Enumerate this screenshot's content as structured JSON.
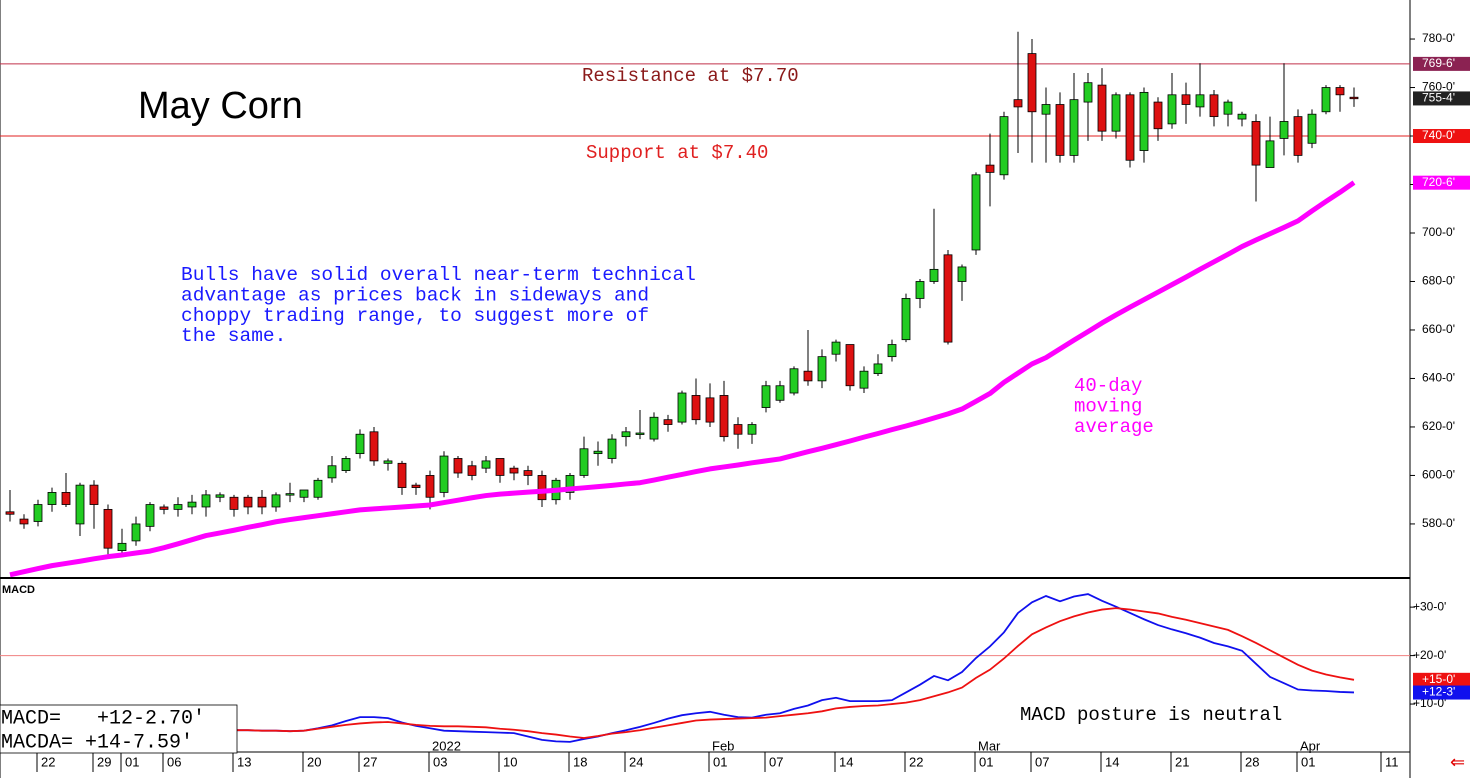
{
  "chart_data": {
    "type": "candlestick",
    "title": "May Corn",
    "categories": [
      null,
      null,
      "22",
      null,
      null,
      null,
      "29",
      null,
      "01",
      null,
      null,
      "06",
      null,
      null,
      null,
      null,
      "13",
      null,
      null,
      null,
      null,
      "20",
      null,
      null,
      null,
      "27",
      null,
      null,
      null,
      null,
      "03",
      null,
      null,
      null,
      null,
      "10",
      null,
      null,
      null,
      null,
      "18",
      null,
      null,
      null,
      "24",
      null,
      null,
      null,
      null,
      null,
      "01",
      null,
      null,
      null,
      "07",
      null,
      null,
      null,
      null,
      "14",
      null,
      null,
      null,
      null,
      "22",
      null,
      null,
      null,
      null,
      "01",
      null,
      null,
      null,
      "07",
      null,
      null,
      null,
      null,
      "14",
      null,
      null,
      null,
      null,
      "21",
      null,
      null,
      null,
      null,
      "28",
      null,
      null,
      null,
      "01",
      null,
      null,
      null,
      null,
      null,
      "11"
    ],
    "month_categories": [
      null,
      null,
      null,
      null,
      null,
      null,
      null,
      null,
      null,
      null,
      null,
      null,
      null,
      null,
      null,
      null,
      null,
      null,
      null,
      null,
      null,
      null,
      null,
      null,
      null,
      null,
      null,
      null,
      null,
      null,
      "2022",
      null,
      null,
      null,
      null,
      null,
      null,
      null,
      null,
      null,
      null,
      null,
      null,
      null,
      null,
      null,
      null,
      null,
      null,
      null,
      "Feb",
      null,
      null,
      null,
      null,
      null,
      null,
      null,
      null,
      null,
      null,
      null,
      null,
      null,
      null,
      null,
      null,
      null,
      null,
      "Mar",
      null,
      null,
      null,
      null,
      null,
      null,
      null,
      null,
      null,
      null,
      null,
      null,
      null,
      null,
      null,
      null,
      null,
      null,
      null,
      null,
      null,
      null,
      "Apr",
      null,
      null,
      null,
      null,
      null,
      null
    ],
    "open": [
      585,
      582,
      581,
      588,
      593,
      580,
      596,
      586,
      569,
      573,
      579,
      587,
      586,
      587,
      587,
      591,
      591,
      591,
      591,
      587,
      592,
      591,
      591,
      599,
      602,
      609,
      618,
      605,
      605,
      596,
      600,
      593,
      607,
      604,
      603,
      607,
      603,
      602,
      600,
      590,
      593,
      600,
      609,
      607,
      616,
      617,
      615,
      623,
      622,
      633,
      632,
      633,
      621,
      617,
      628,
      631,
      634,
      643,
      639,
      650,
      654,
      636,
      642,
      649,
      656,
      673,
      680,
      691,
      680,
      693,
      728,
      724,
      755,
      774,
      749,
      753,
      732,
      754,
      761,
      742,
      757,
      734,
      754,
      745,
      757,
      752,
      757,
      749,
      747,
      746,
      727,
      739,
      748,
      737,
      750,
      760,
      756,
      null,
      null
    ],
    "high": [
      594,
      584,
      590,
      595,
      601,
      597,
      598,
      588,
      578,
      583,
      589,
      588,
      591,
      592,
      594,
      593,
      592,
      592,
      594,
      593,
      597,
      594,
      599,
      608,
      608,
      619,
      620,
      607,
      606,
      597,
      602,
      610,
      608,
      606,
      608,
      607,
      604,
      604,
      602,
      599,
      601,
      616,
      614,
      617,
      620,
      627,
      626,
      625,
      635,
      640,
      638,
      639,
      624,
      622,
      639,
      639,
      645,
      660,
      652,
      656,
      654,
      645,
      650,
      656,
      675,
      681,
      710,
      693,
      687,
      725,
      741,
      750,
      783,
      780,
      760,
      758,
      766,
      766,
      768,
      758,
      758,
      760,
      756,
      766,
      762,
      770,
      759,
      755,
      750,
      749,
      748,
      770,
      751,
      751,
      761,
      761,
      760,
      null,
      null
    ],
    "low": [
      581,
      578,
      579,
      585,
      587,
      575,
      578,
      566,
      568,
      571,
      577,
      584,
      583,
      584,
      583,
      589,
      583,
      584,
      584,
      585,
      589,
      589,
      590,
      597,
      601,
      607,
      604,
      602,
      592,
      592,
      586,
      591,
      599,
      598,
      601,
      597,
      598,
      596,
      587,
      588,
      590,
      599,
      604,
      605,
      612,
      615,
      614,
      618,
      621,
      621,
      620,
      614,
      611,
      613,
      626,
      630,
      633,
      637,
      636,
      647,
      635,
      634,
      641,
      647,
      655,
      669,
      679,
      654,
      672,
      691,
      711,
      722,
      733,
      729,
      729,
      729,
      729,
      738,
      738,
      739,
      727,
      729,
      738,
      743,
      745,
      748,
      744,
      744,
      744,
      713,
      727,
      732,
      729,
      735,
      749,
      750,
      752,
      null,
      null
    ],
    "close": [
      584,
      580,
      588,
      593,
      588,
      596,
      588,
      570,
      572,
      580,
      588,
      586,
      588,
      589,
      592,
      592,
      586,
      587,
      587,
      592,
      592.5,
      594,
      598,
      604,
      607,
      617,
      606,
      606,
      595,
      595,
      591,
      608,
      601,
      600,
      606,
      600,
      601,
      600,
      590,
      598,
      600,
      611,
      610,
      615,
      618,
      617.5,
      624,
      621,
      634,
      623,
      622,
      616,
      617,
      621,
      637,
      637,
      644,
      639,
      649,
      655,
      637,
      643,
      646,
      654,
      673,
      680,
      685,
      655,
      686,
      724,
      725,
      748,
      752,
      750,
      753,
      732,
      755,
      762,
      742,
      757,
      730,
      758,
      743,
      757,
      753,
      757,
      748,
      754,
      749,
      728,
      738,
      746,
      732,
      749,
      760,
      757,
      755.5,
      null,
      null
    ],
    "up_color": "#22cc22",
    "down_color": "#dd1111",
    "moving_average": {
      "label": [
        "40-day",
        "moving",
        "average"
      ],
      "color": "#ff00ff",
      "values": [
        559.0,
        560.3,
        561.6,
        562.8,
        563.7,
        564.6,
        565.6,
        566.5,
        567.2,
        568.0,
        568.8,
        570.2,
        571.8,
        573.5,
        575.2,
        576.3,
        577.4,
        578.6,
        579.7,
        580.9,
        581.8,
        582.6,
        583.4,
        584.2,
        585.0,
        585.8,
        586.2,
        586.6,
        587.0,
        587.4,
        587.8,
        588.8,
        589.8,
        590.8,
        591.7,
        592.3,
        592.7,
        593.1,
        593.5,
        593.9,
        594.4,
        594.9,
        595.4,
        595.9,
        596.5,
        597.0,
        598.1,
        599.3,
        600.4,
        601.6,
        602.7,
        603.5,
        604.3,
        605.2,
        606.0,
        606.8,
        608.3,
        609.8,
        611.2,
        612.7,
        614.2,
        615.8,
        617.3,
        618.9,
        620.4,
        622.0,
        623.7,
        625.4,
        627.4,
        630.6,
        633.8,
        638.4,
        642.2,
        646.0,
        648.6,
        652.2,
        655.8,
        659.3,
        662.9,
        666.2,
        669.4,
        672.5,
        675.6,
        678.7,
        681.8,
        685.0,
        688.1,
        691.2,
        694.4,
        697.1,
        699.7,
        702.3,
        705.0,
        709.1,
        713.0,
        716.8,
        720.8,
        null,
        null
      ]
    },
    "ylim": [
      557.7,
      796.1
    ],
    "yticks": [
      {
        "value": 580,
        "label": "580-0'"
      },
      {
        "value": 600,
        "label": "600-0'"
      },
      {
        "value": 620,
        "label": "620-0'"
      },
      {
        "value": 640,
        "label": "640-0'"
      },
      {
        "value": 660,
        "label": "660-0'"
      },
      {
        "value": 680,
        "label": "680-0'"
      },
      {
        "value": 700,
        "label": "700-0'"
      },
      {
        "value": 720,
        "label": "720-0'"
      },
      {
        "value": 740,
        "label": "740-0'"
      },
      {
        "value": 760,
        "label": "760-0'"
      },
      {
        "value": 780,
        "label": "780-0'"
      }
    ],
    "hlines": [
      {
        "value": 769.75,
        "color": "#c0304a",
        "label": "Resistance at $7.70",
        "text_color": "#8b1a1a"
      },
      {
        "value": 740,
        "color": "#e02020",
        "label": "Support at $7.40",
        "text_color": "#e02020"
      }
    ],
    "price_tags": [
      {
        "value": 769.75,
        "label": "769-6'",
        "color": "#8b2252"
      },
      {
        "value": 755.5,
        "label": "755-4'",
        "color": "#222222"
      },
      {
        "value": 740,
        "label": "740-0'",
        "color": "#ee1111"
      },
      {
        "value": 720.75,
        "label": "720-6'",
        "color": "#ff00ff"
      }
    ],
    "annotation": {
      "lines": [
        "Bulls have solid overall near-term technical",
        "advantage as prices back in sideways and",
        "choppy trading range, to suggest more of",
        "the same."
      ],
      "color": "#1a1aff"
    },
    "macd": {
      "title": "MACD",
      "note": "MACD posture is neutral",
      "ylim": [
        0,
        35.6
      ],
      "yticks": [
        {
          "value": 10,
          "label": "+10-0'"
        },
        {
          "value": 20,
          "label": "+20-0'"
        },
        {
          "value": 30,
          "label": "+30-0'"
        }
      ],
      "refline": {
        "value": 20,
        "color": "#f08080"
      },
      "series": [
        {
          "label": "MACD=   +12-2.70'",
          "color": "#1010ee",
          "values": [
            null,
            null,
            null,
            null,
            null,
            null,
            null,
            null,
            null,
            null,
            null,
            null,
            null,
            null,
            null,
            null,
            4.6,
            4.6,
            4.5,
            4.5,
            4.4,
            4.5,
            5.0,
            5.6,
            6.5,
            7.3,
            7.3,
            7.1,
            6.2,
            5.5,
            5.0,
            4.5,
            4.4,
            4.3,
            4.2,
            4.1,
            4.0,
            3.3,
            2.6,
            2.3,
            2.2,
            2.8,
            3.3,
            4.0,
            4.6,
            5.3,
            6.1,
            7.0,
            7.7,
            8.1,
            8.4,
            7.8,
            7.3,
            7.2,
            7.8,
            8.1,
            9.0,
            9.7,
            10.8,
            11.3,
            10.6,
            10.6,
            10.6,
            10.8,
            12.4,
            14.0,
            15.8,
            14.9,
            16.6,
            19.5,
            21.9,
            24.8,
            28.8,
            31.0,
            32.3,
            31.2,
            32.2,
            32.7,
            31.3,
            30.1,
            28.8,
            27.5,
            26.3,
            25.4,
            24.6,
            23.7,
            22.6,
            21.9,
            21.0,
            18.3,
            15.6,
            14.3,
            13.0,
            12.8,
            12.7,
            12.5,
            12.4,
            null,
            null
          ]
        },
        {
          "label": "MACDA= +14-7.59'",
          "color": "#ee1111",
          "values": [
            null,
            null,
            null,
            null,
            null,
            null,
            null,
            null,
            null,
            null,
            null,
            null,
            null,
            null,
            null,
            null,
            4.6,
            4.6,
            4.5,
            4.5,
            4.4,
            4.5,
            4.9,
            5.3,
            5.7,
            6.0,
            6.2,
            6.3,
            6.0,
            5.7,
            5.5,
            5.4,
            5.4,
            5.3,
            5.2,
            4.9,
            4.7,
            4.4,
            4.0,
            3.7,
            3.3,
            3.0,
            3.4,
            3.9,
            4.2,
            4.6,
            5.1,
            5.6,
            6.1,
            6.6,
            6.8,
            6.9,
            7.0,
            7.1,
            7.2,
            7.5,
            7.8,
            8.1,
            8.5,
            9.1,
            9.4,
            9.6,
            9.7,
            10.0,
            10.3,
            10.8,
            11.6,
            12.4,
            13.4,
            15.4,
            17.1,
            19.4,
            22.0,
            24.4,
            25.8,
            27.1,
            28.1,
            28.9,
            29.5,
            29.8,
            29.5,
            29.1,
            28.7,
            28.0,
            27.4,
            26.7,
            26.0,
            25.3,
            24.0,
            22.6,
            21.1,
            19.6,
            18.1,
            16.9,
            16.1,
            15.5,
            15.0,
            null,
            null
          ]
        }
      ],
      "tags": [
        {
          "value": 15,
          "label": "+15-0'",
          "color": "#ee1111"
        },
        {
          "value": 12.375,
          "label": "+12-3'",
          "color": "#1010ee"
        }
      ]
    }
  }
}
